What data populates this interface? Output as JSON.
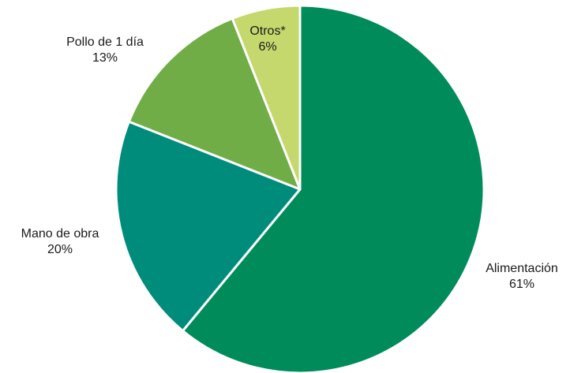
{
  "chart_data": {
    "type": "pie",
    "title": "",
    "start_angle": "12 o'clock",
    "direction": "clockwise",
    "legend": "none (labels placed next to slices)",
    "slices": [
      {
        "label": "Alimentación",
        "value": 61,
        "value_label": "61%",
        "color": "#008C5A"
      },
      {
        "label": "Mano de obra",
        "value": 20,
        "value_label": "20%",
        "color": "#008C7B"
      },
      {
        "label": "Pollo de 1 día",
        "value": 13,
        "value_label": "13%",
        "color": "#70AD47"
      },
      {
        "label": "Otros*",
        "value": 6,
        "value_label": "6%",
        "color": "#C5D86D"
      }
    ]
  }
}
